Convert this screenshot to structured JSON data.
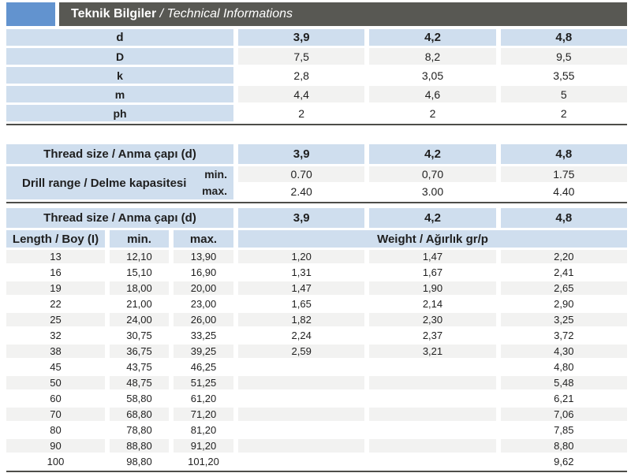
{
  "header": {
    "title_tr": "Teknik Bilgiler",
    "title_en": " / Technical Informations"
  },
  "colors": {
    "accent": "#6293cf",
    "bar": "#585853",
    "cellblue": "#cfdeee",
    "stripe": "#f2f2f1",
    "rule": "#4d4d49"
  },
  "sizes_table": {
    "header_label": "d",
    "columns": [
      "3,9",
      "4,2",
      "4,8"
    ],
    "rows": [
      {
        "label": "D",
        "values": [
          "7,5",
          "8,2",
          "9,5"
        ]
      },
      {
        "label": "k",
        "values": [
          "2,8",
          "3,05",
          "3,55"
        ]
      },
      {
        "label": "m",
        "values": [
          "4,4",
          "4,6",
          "5"
        ]
      },
      {
        "label": "ph",
        "values": [
          "2",
          "2",
          "2"
        ]
      }
    ]
  },
  "drill_table": {
    "header_label": "Thread size / Anma çapı (d)",
    "columns": [
      "3,9",
      "4,2",
      "4,8"
    ],
    "row_label": "Drill range / Delme kapasitesi",
    "min_label": "min.",
    "max_label": "max.",
    "min_values": [
      "0.70",
      "0,70",
      "1.75"
    ],
    "max_values": [
      "2.40",
      "3.00",
      "4.40"
    ]
  },
  "weight_table": {
    "header_label": "Thread size / Anma çapı (d)",
    "columns": [
      "3,9",
      "4,2",
      "4,8"
    ],
    "length_label": "Length / Boy (I)",
    "min_label": "min.",
    "max_label": "max.",
    "weight_label": "Weight / Ağırlık gr/p",
    "rows": [
      {
        "length": "13",
        "min": "12,10",
        "max": "13,90",
        "weights": [
          "1,20",
          "1,47",
          "2,20"
        ]
      },
      {
        "length": "16",
        "min": "15,10",
        "max": "16,90",
        "weights": [
          "1,31",
          "1,67",
          "2,41"
        ]
      },
      {
        "length": "19",
        "min": "18,00",
        "max": "20,00",
        "weights": [
          "1,47",
          "1,90",
          "2,65"
        ]
      },
      {
        "length": "22",
        "min": "21,00",
        "max": "23,00",
        "weights": [
          "1,65",
          "2,14",
          "2,90"
        ]
      },
      {
        "length": "25",
        "min": "24,00",
        "max": "26,00",
        "weights": [
          "1,82",
          "2,30",
          "3,25"
        ]
      },
      {
        "length": "32",
        "min": "30,75",
        "max": "33,25",
        "weights": [
          "2,24",
          "2,37",
          "3,72"
        ]
      },
      {
        "length": "38",
        "min": "36,75",
        "max": "39,25",
        "weights": [
          "2,59",
          "3,21",
          "4,30"
        ]
      },
      {
        "length": "45",
        "min": "43,75",
        "max": "46,25",
        "weights": [
          "",
          "",
          "4,80"
        ]
      },
      {
        "length": "50",
        "min": "48,75",
        "max": "51,25",
        "weights": [
          "",
          "",
          "5,48"
        ]
      },
      {
        "length": "60",
        "min": "58,80",
        "max": "61,20",
        "weights": [
          "",
          "",
          "6,21"
        ]
      },
      {
        "length": "70",
        "min": "68,80",
        "max": "71,20",
        "weights": [
          "",
          "",
          "7,06"
        ]
      },
      {
        "length": "80",
        "min": "78,80",
        "max": "81,20",
        "weights": [
          "",
          "",
          "7,85"
        ]
      },
      {
        "length": "90",
        "min": "88,80",
        "max": "91,20",
        "weights": [
          "",
          "",
          "8,80"
        ]
      },
      {
        "length": "100",
        "min": "98,80",
        "max": "101,20",
        "weights": [
          "",
          "",
          "9,62"
        ]
      }
    ]
  }
}
